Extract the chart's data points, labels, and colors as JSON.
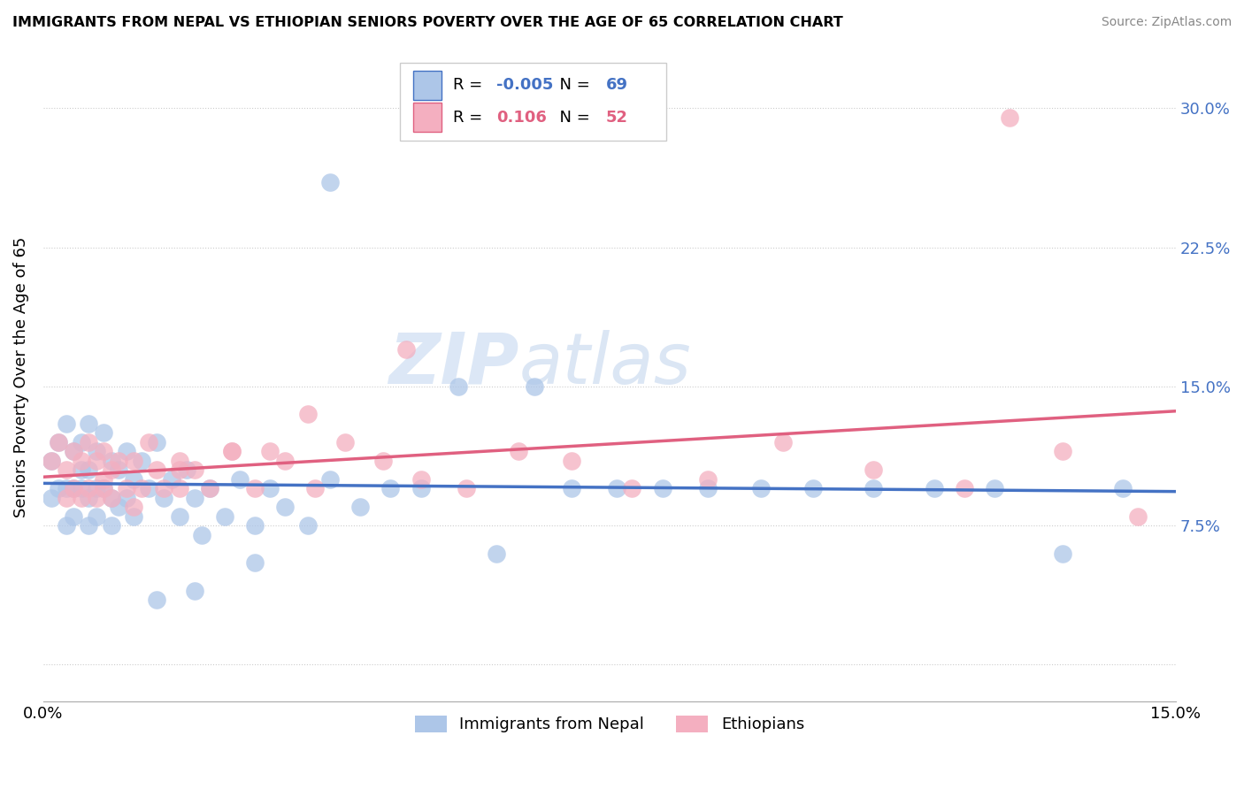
{
  "title": "IMMIGRANTS FROM NEPAL VS ETHIOPIAN SENIORS POVERTY OVER THE AGE OF 65 CORRELATION CHART",
  "source": "Source: ZipAtlas.com",
  "ylabel": "Seniors Poverty Over the Age of 65",
  "xlim": [
    0.0,
    0.15
  ],
  "ylim": [
    -0.02,
    0.33
  ],
  "yticks": [
    0.0,
    0.075,
    0.15,
    0.225,
    0.3
  ],
  "ytick_labels": [
    "",
    "7.5%",
    "15.0%",
    "22.5%",
    "30.0%"
  ],
  "xticks": [
    0.0,
    0.15
  ],
  "xtick_labels": [
    "0.0%",
    "15.0%"
  ],
  "nepal_R": -0.005,
  "nepal_N": 69,
  "ethiopian_R": 0.106,
  "ethiopian_N": 52,
  "nepal_color": "#adc6e8",
  "ethiopian_color": "#f4afc0",
  "nepal_line_color": "#4472c4",
  "ethiopian_line_color": "#e06080",
  "watermark_color": "#c8d8ec",
  "nepal_scatter_x": [
    0.001,
    0.001,
    0.002,
    0.002,
    0.003,
    0.003,
    0.003,
    0.004,
    0.004,
    0.004,
    0.005,
    0.005,
    0.005,
    0.006,
    0.006,
    0.006,
    0.006,
    0.007,
    0.007,
    0.007,
    0.008,
    0.008,
    0.009,
    0.009,
    0.009,
    0.01,
    0.01,
    0.011,
    0.011,
    0.012,
    0.012,
    0.013,
    0.014,
    0.015,
    0.016,
    0.017,
    0.018,
    0.019,
    0.02,
    0.021,
    0.022,
    0.024,
    0.026,
    0.028,
    0.03,
    0.032,
    0.035,
    0.038,
    0.042,
    0.046,
    0.05,
    0.055,
    0.06,
    0.065,
    0.07,
    0.076,
    0.082,
    0.088,
    0.095,
    0.102,
    0.11,
    0.118,
    0.126,
    0.135,
    0.143,
    0.038,
    0.028,
    0.02,
    0.015
  ],
  "nepal_scatter_y": [
    0.11,
    0.09,
    0.12,
    0.095,
    0.13,
    0.095,
    0.075,
    0.115,
    0.095,
    0.08,
    0.12,
    0.095,
    0.105,
    0.13,
    0.105,
    0.09,
    0.075,
    0.115,
    0.095,
    0.08,
    0.125,
    0.095,
    0.11,
    0.09,
    0.075,
    0.105,
    0.085,
    0.115,
    0.09,
    0.1,
    0.08,
    0.11,
    0.095,
    0.12,
    0.09,
    0.1,
    0.08,
    0.105,
    0.09,
    0.07,
    0.095,
    0.08,
    0.1,
    0.075,
    0.095,
    0.085,
    0.075,
    0.1,
    0.085,
    0.095,
    0.095,
    0.15,
    0.06,
    0.15,
    0.095,
    0.095,
    0.095,
    0.095,
    0.095,
    0.095,
    0.095,
    0.095,
    0.095,
    0.06,
    0.095,
    0.26,
    0.055,
    0.04,
    0.035
  ],
  "ethiopian_scatter_x": [
    0.001,
    0.002,
    0.003,
    0.003,
    0.004,
    0.004,
    0.005,
    0.005,
    0.006,
    0.006,
    0.007,
    0.007,
    0.008,
    0.008,
    0.009,
    0.009,
    0.01,
    0.011,
    0.012,
    0.013,
    0.014,
    0.015,
    0.016,
    0.018,
    0.02,
    0.022,
    0.025,
    0.028,
    0.032,
    0.036,
    0.04,
    0.045,
    0.05,
    0.056,
    0.063,
    0.07,
    0.078,
    0.088,
    0.098,
    0.11,
    0.122,
    0.135,
    0.048,
    0.035,
    0.025,
    0.018,
    0.012,
    0.008,
    0.018,
    0.03,
    0.145,
    0.128
  ],
  "ethiopian_scatter_y": [
    0.11,
    0.12,
    0.105,
    0.09,
    0.115,
    0.095,
    0.11,
    0.09,
    0.12,
    0.095,
    0.11,
    0.09,
    0.115,
    0.095,
    0.105,
    0.09,
    0.11,
    0.095,
    0.11,
    0.095,
    0.12,
    0.105,
    0.095,
    0.11,
    0.105,
    0.095,
    0.115,
    0.095,
    0.11,
    0.095,
    0.12,
    0.11,
    0.1,
    0.095,
    0.115,
    0.11,
    0.095,
    0.1,
    0.12,
    0.105,
    0.095,
    0.115,
    0.17,
    0.135,
    0.115,
    0.105,
    0.085,
    0.1,
    0.095,
    0.115,
    0.08,
    0.295
  ]
}
